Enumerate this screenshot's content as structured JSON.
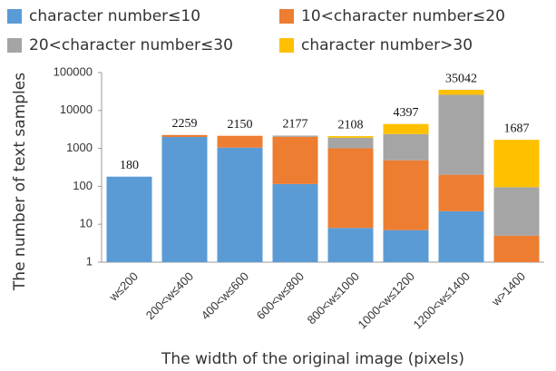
{
  "chart_data": {
    "type": "stacked_bar",
    "log_scale": true,
    "x_label": "The width of the original image (pixels)",
    "y_label": "The number of text samples",
    "categories": [
      "w≤200",
      "200<w≤400",
      "400<w≤600",
      "600<w≤800",
      "800<w≤1000",
      "1000<w≤1200",
      "1200<w≤1400",
      "w>1400"
    ],
    "series": [
      {
        "name": "character number≤10",
        "color": "#5b9bd5",
        "values": [
          180,
          2000,
          1050,
          115,
          8,
          7,
          22,
          0
        ]
      },
      {
        "name": "10<character number≤20",
        "color": "#ed7d31",
        "values": [
          0,
          259,
          1100,
          1900,
          1000,
          480,
          180,
          5
        ]
      },
      {
        "name": "20<character number≤30",
        "color": "#a5a5a5",
        "values": [
          0,
          0,
          0,
          162,
          900,
          1900,
          25800,
          90
        ]
      },
      {
        "name": "character number>30",
        "color": "#ffc000",
        "values": [
          0,
          0,
          0,
          0,
          200,
          2010,
          9040,
          1592
        ]
      }
    ],
    "totals": [
      180,
      2259,
      2150,
      2177,
      2108,
      4397,
      35042,
      1687
    ],
    "ylim": [
      1,
      100000
    ],
    "yticks": [
      1,
      10,
      100,
      1000,
      10000,
      100000
    ]
  }
}
